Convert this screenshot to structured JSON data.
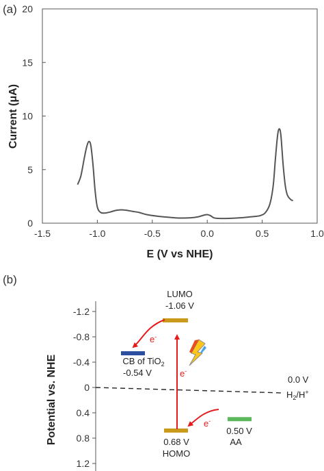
{
  "chart_data": [
    {
      "type": "line",
      "panel_label": "(a)",
      "xlabel": "E (V vs NHE)",
      "ylabel": "Current (μA)",
      "xlim": [
        -1.5,
        1.0
      ],
      "ylim": [
        0,
        20
      ],
      "xticks": [
        "-1.5",
        "-1.0",
        "-0.5",
        "0.0",
        "0.5",
        "1.0"
      ],
      "xtick_values": [
        -1.5,
        -1.0,
        -0.5,
        0.0,
        0.5,
        1.0
      ],
      "yticks": [
        "0",
        "5",
        "10",
        "15",
        "20"
      ],
      "ytick_values": [
        0,
        5,
        10,
        15,
        20
      ],
      "grid": false,
      "series_color": "#555555",
      "series": [
        {
          "x": [
            -1.18,
            -1.15,
            -1.12,
            -1.1,
            -1.08,
            -1.06,
            -1.04,
            -1.02,
            -1.0,
            -0.97,
            -0.93,
            -0.88,
            -0.83,
            -0.78,
            -0.73,
            -0.68,
            -0.62,
            -0.55,
            -0.45,
            -0.35,
            -0.25,
            -0.15,
            -0.08,
            -0.03,
            0.0,
            0.03,
            0.06,
            0.1,
            0.2,
            0.3,
            0.4,
            0.48,
            0.53,
            0.57,
            0.6,
            0.62,
            0.64,
            0.655,
            0.67,
            0.69,
            0.71,
            0.73,
            0.76,
            0.78
          ],
          "y": [
            3.6,
            4.4,
            6.0,
            7.0,
            7.6,
            7.3,
            5.5,
            3.0,
            1.5,
            1.0,
            0.95,
            1.05,
            1.2,
            1.25,
            1.2,
            1.1,
            1.0,
            0.8,
            0.65,
            0.55,
            0.48,
            0.5,
            0.6,
            0.75,
            0.8,
            0.7,
            0.5,
            0.45,
            0.45,
            0.5,
            0.6,
            0.7,
            1.0,
            1.8,
            3.5,
            6.0,
            8.2,
            8.8,
            8.2,
            5.5,
            3.5,
            2.6,
            2.2,
            2.1
          ]
        }
      ]
    },
    {
      "type": "diagram",
      "panel_label": "(b)",
      "ylabel": "Potential  vs. NHE",
      "ylim": [
        -1.2,
        1.2
      ],
      "yticks": [
        "-1.2",
        "-0.8",
        "-0.4",
        "0",
        "0.4",
        "0.8",
        "1.2"
      ],
      "ytick_values": [
        -1.2,
        -0.8,
        -0.4,
        0,
        0.4,
        0.8,
        1.2
      ],
      "reference_line": {
        "value": 0.0,
        "label_value": "0.0 V",
        "label_couple": "H2/H+"
      },
      "levels": [
        {
          "name": "LUMO",
          "value_label": "-1.06 V",
          "value": -1.06,
          "color": "#c99a1a"
        },
        {
          "name": "HOMO",
          "value_label": "0.68 V",
          "value": 0.68,
          "color": "#c99a1a"
        },
        {
          "name": "CB of TiO2",
          "value_label": "-0.54 V",
          "value": -0.54,
          "color": "#2b4ea0"
        },
        {
          "name": "AA",
          "value_label": "0.50 V",
          "value": 0.5,
          "color": "#5cb85c"
        }
      ],
      "electron_label": "e",
      "electron_sup": "-",
      "arrow_color": "#e41b1b",
      "lightning_icon": "lightning-bolt-icon"
    }
  ]
}
